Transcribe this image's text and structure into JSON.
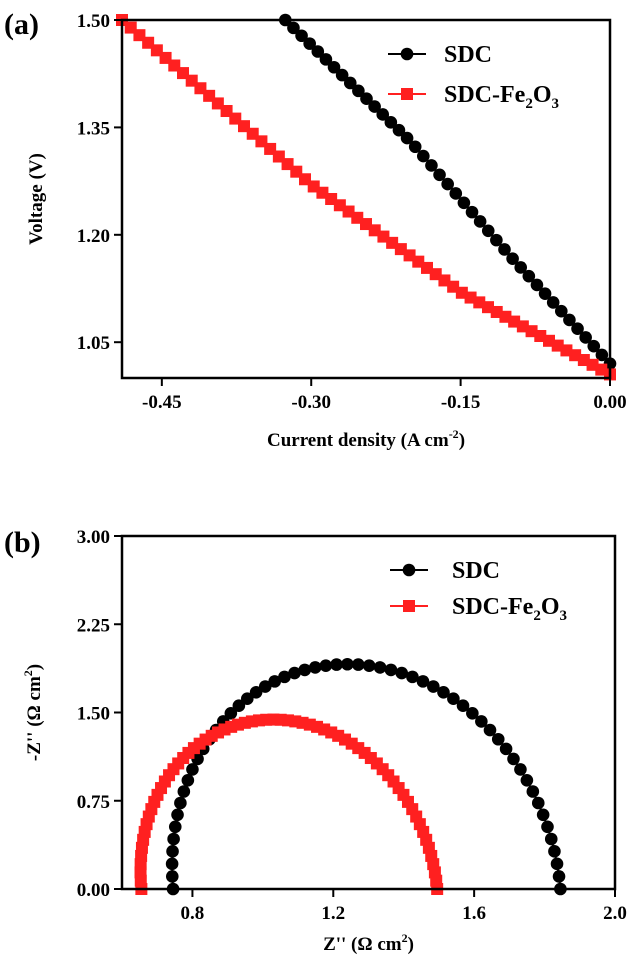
{
  "chart_data": [
    {
      "panel_label": "(a)",
      "type": "line",
      "xlabel": "Current density (A cm",
      "xlabel_sup": "-2",
      "xlabel_end": ")",
      "ylabel": "Voltage (V)",
      "xlim": [
        -0.49,
        0.0
      ],
      "ylim": [
        1.0,
        1.5
      ],
      "xticks": [
        -0.45,
        -0.3,
        -0.15,
        0.0
      ],
      "xtick_labels": [
        "-0.45",
        "-0.30",
        "-0.15",
        "0.00"
      ],
      "yticks": [
        1.05,
        1.2,
        1.35,
        1.5
      ],
      "ytick_labels": [
        "1.05",
        "1.20",
        "1.35",
        "1.50"
      ],
      "legend_position": "top-right",
      "series": [
        {
          "name": "SDC",
          "name_sub": "",
          "name_end": "",
          "color": "#000000",
          "marker": "circle",
          "x": [
            -0.326,
            -0.2,
            -0.1,
            0.0
          ],
          "y": [
            1.5,
            1.33,
            1.17,
            1.02
          ]
        },
        {
          "name": "SDC-Fe",
          "name_sub": "2",
          "name_end": "O",
          "name_sub2": "3",
          "color": "#ff2020",
          "marker": "square",
          "x": [
            -0.49,
            -0.3,
            -0.15,
            0.0
          ],
          "y": [
            1.5,
            1.27,
            1.12,
            1.005
          ]
        }
      ]
    },
    {
      "panel_label": "(b)",
      "type": "scatter",
      "xlabel": "Z'' (Ω cm",
      "xlabel_sup": "2",
      "xlabel_end": ")",
      "ylabel": "-Z'' (Ω cm",
      "ylabel_sup": "2",
      "ylabel_end": ")",
      "xlim": [
        0.6,
        2.0
      ],
      "ylim": [
        0.0,
        3.0
      ],
      "xticks": [
        0.8,
        1.2,
        1.6,
        2.0
      ],
      "xtick_labels": [
        "0.8",
        "1.2",
        "1.6",
        "2.0"
      ],
      "yticks": [
        0.0,
        0.75,
        1.5,
        2.25,
        3.0
      ],
      "ytick_labels": [
        "0.00",
        "0.75",
        "1.50",
        "2.25",
        "3.00"
      ],
      "legend_position": "top-right",
      "series": [
        {
          "name": "SDC",
          "name_sub": "",
          "name_end": "",
          "color": "#000000",
          "marker": "circle",
          "arc": {
            "x_start": 0.745,
            "x_end": 1.845,
            "peak_x": 1.24,
            "peak_y": 1.91
          }
        },
        {
          "name": "SDC-Fe",
          "name_sub": "2",
          "name_end": "O",
          "name_sub2": "3",
          "color": "#ff2020",
          "marker": "square",
          "arc": {
            "x_start": 0.655,
            "x_end": 1.495,
            "peak_x": 1.03,
            "peak_y": 1.44
          }
        }
      ]
    }
  ]
}
